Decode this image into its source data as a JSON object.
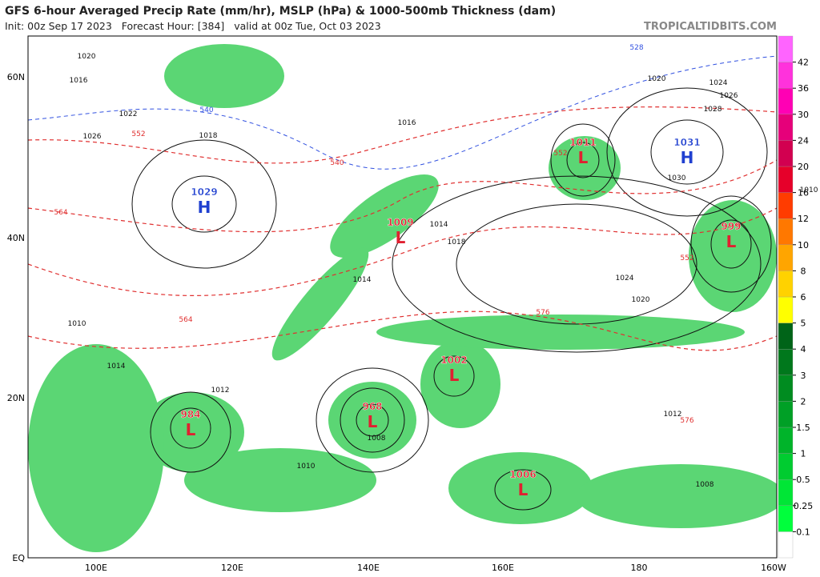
{
  "header": {
    "title": "GFS 6-hour Averaged Precip Rate (mm/hr), MSLP (hPa) & 1000-500mb Thickness (dam)",
    "subtitle": "Init: 00z Sep 17 2023   Forecast Hour: [384]   valid at 00z Tue, Oct 03 2023",
    "site": "TROPICALTIDBITS.COM"
  },
  "map": {
    "lat_labels": [
      "60N",
      "40N",
      "20N",
      "EQ"
    ],
    "lon_labels": [
      "100E",
      "120E",
      "140E",
      "160E",
      "180",
      "160W"
    ],
    "centers": [
      {
        "type": "H",
        "pressure": 1029
      },
      {
        "type": "H",
        "pressure": 1031
      },
      {
        "type": "L",
        "pressure": 1011
      },
      {
        "type": "L",
        "pressure": 1009
      },
      {
        "type": "L",
        "pressure": 999
      },
      {
        "type": "L",
        "pressure": 1002
      },
      {
        "type": "L",
        "pressure": 968
      },
      {
        "type": "L",
        "pressure": 984
      },
      {
        "type": "L",
        "pressure": 1006
      }
    ],
    "isobar_labels": [
      1020,
      1016,
      1022,
      1018,
      1026,
      1014,
      1010,
      1012,
      1020,
      1024,
      1026,
      1028,
      1030,
      1024,
      1020,
      1018,
      1014,
      1016,
      1014,
      1012,
      1010,
      1008,
      1010,
      1008
    ],
    "thickness_labels": [
      528,
      540,
      552,
      540,
      564,
      576,
      552,
      564,
      576,
      552
    ]
  },
  "colorbar": {
    "levels": [
      0.1,
      0.25,
      0.5,
      1,
      1.5,
      2,
      3,
      4,
      5,
      6,
      8,
      10,
      12,
      16,
      20,
      24,
      30,
      36,
      42
    ],
    "colors": [
      "#ffffff",
      "#00ff3c",
      "#00e636",
      "#00cc30",
      "#00b42a",
      "#00a026",
      "#008c20",
      "#00781c",
      "#006418",
      "#ffff00",
      "#ffd200",
      "#ffa500",
      "#ff7800",
      "#ff3c00",
      "#e6002a",
      "#d20050",
      "#e6007a",
      "#ff00b4",
      "#ff32dc",
      "#ff64ff"
    ]
  }
}
